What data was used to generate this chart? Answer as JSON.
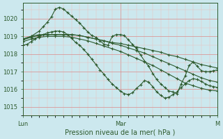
{
  "bg_color": "#cce8ee",
  "grid_color_major": "#dd8888",
  "grid_color_minor": "#eeb8b8",
  "line_color": "#2d5a2d",
  "marker_color": "#2d5a2d",
  "ylabel_ticks": [
    1015,
    1016,
    1017,
    1018,
    1019,
    1020
  ],
  "ylim": [
    1014.5,
    1020.9
  ],
  "xlabel": "Pression niveau de la mer( hPa )",
  "day_labels": [
    "Lun",
    "Mar",
    "M"
  ],
  "day_positions": [
    0,
    48,
    96
  ],
  "n_points": 97,
  "series": [
    {
      "x": [
        0,
        4,
        8,
        10,
        12,
        14,
        16,
        18,
        20,
        22,
        24,
        26,
        28,
        30,
        32,
        34,
        36,
        38,
        40,
        42,
        44,
        46,
        48,
        50,
        52,
        54,
        56,
        58,
        60,
        62,
        64,
        66,
        68,
        70,
        72,
        74,
        76,
        78,
        80,
        82,
        84,
        86,
        88,
        90,
        92,
        94,
        96
      ],
      "y": [
        1018.85,
        1019.0,
        1019.3,
        1019.55,
        1019.8,
        1020.1,
        1020.55,
        1020.65,
        1020.55,
        1020.35,
        1020.15,
        1019.95,
        1019.75,
        1019.5,
        1019.25,
        1019.05,
        1018.95,
        1018.75,
        1018.55,
        1018.5,
        1019.0,
        1019.1,
        1019.1,
        1019.05,
        1018.8,
        1018.55,
        1018.3,
        1017.95,
        1017.6,
        1017.3,
        1016.9,
        1016.55,
        1016.3,
        1016.1,
        1015.9,
        1015.85,
        1015.75,
        1016.3,
        1016.75,
        1017.35,
        1017.55,
        1017.3,
        1017.05,
        1017.0,
        1017.0,
        1017.05,
        1017.1
      ]
    },
    {
      "x": [
        0,
        4,
        8,
        12,
        16,
        20,
        24,
        28,
        32,
        36,
        40,
        44,
        48,
        52,
        56,
        60,
        64,
        68,
        72,
        76,
        80,
        84,
        88,
        92,
        96
      ],
      "y": [
        1018.85,
        1019.0,
        1019.1,
        1019.1,
        1019.1,
        1019.1,
        1019.1,
        1019.05,
        1018.95,
        1018.85,
        1018.75,
        1018.65,
        1018.6,
        1018.5,
        1018.4,
        1018.3,
        1018.2,
        1018.1,
        1017.95,
        1017.85,
        1017.7,
        1017.55,
        1017.4,
        1017.3,
        1017.2
      ]
    },
    {
      "x": [
        0,
        4,
        8,
        12,
        16,
        20,
        24,
        28,
        32,
        36,
        40,
        44,
        48,
        52,
        56,
        60,
        64,
        68,
        72,
        76,
        80,
        84,
        88,
        92,
        96
      ],
      "y": [
        1018.8,
        1018.95,
        1019.05,
        1019.1,
        1019.1,
        1019.1,
        1019.1,
        1019.05,
        1018.95,
        1018.85,
        1018.75,
        1018.6,
        1018.5,
        1018.35,
        1018.2,
        1018.05,
        1017.85,
        1017.65,
        1017.45,
        1017.25,
        1017.05,
        1016.85,
        1016.65,
        1016.5,
        1016.4
      ]
    },
    {
      "x": [
        0,
        4,
        8,
        12,
        16,
        20,
        24,
        28,
        32,
        36,
        40,
        44,
        48,
        52,
        56,
        60,
        64,
        68,
        72,
        76,
        80,
        84,
        88,
        92,
        96
      ],
      "y": [
        1018.7,
        1018.85,
        1018.95,
        1019.0,
        1019.0,
        1019.0,
        1018.95,
        1018.85,
        1018.75,
        1018.6,
        1018.45,
        1018.3,
        1018.15,
        1017.95,
        1017.75,
        1017.55,
        1017.35,
        1017.1,
        1016.85,
        1016.6,
        1016.35,
        1016.2,
        1016.05,
        1015.95,
        1015.9
      ]
    },
    {
      "x": [
        0,
        2,
        4,
        6,
        8,
        10,
        12,
        14,
        16,
        18,
        20,
        22,
        24,
        26,
        28,
        30,
        32,
        34,
        36,
        38,
        40,
        42,
        44,
        46,
        48,
        50,
        52,
        54,
        56,
        58,
        60,
        62,
        64,
        66,
        68,
        70,
        72,
        74,
        76,
        78,
        80,
        82,
        84,
        86,
        88,
        90,
        92,
        94,
        96
      ],
      "y": [
        1018.5,
        1018.55,
        1018.7,
        1018.85,
        1019.0,
        1019.1,
        1019.2,
        1019.25,
        1019.3,
        1019.3,
        1019.25,
        1019.1,
        1018.9,
        1018.65,
        1018.5,
        1018.25,
        1018.0,
        1017.7,
        1017.4,
        1017.1,
        1016.85,
        1016.55,
        1016.3,
        1016.1,
        1015.9,
        1015.75,
        1015.7,
        1015.8,
        1016.05,
        1016.25,
        1016.5,
        1016.4,
        1016.15,
        1015.85,
        1015.65,
        1015.5,
        1015.55,
        1015.7,
        1015.85,
        1016.1,
        1016.3,
        1016.5,
        1016.6,
        1016.55,
        1016.45,
        1016.3,
        1016.2,
        1016.15,
        1016.1
      ]
    }
  ]
}
